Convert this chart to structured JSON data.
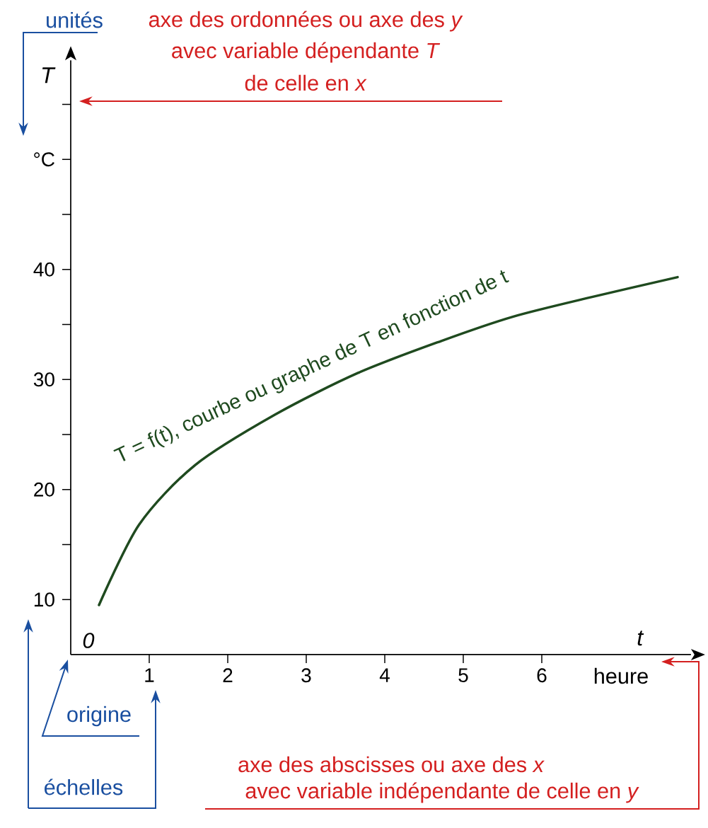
{
  "chart_data": {
    "type": "line",
    "ylabel": "T",
    "xlabel": "t",
    "color": "#1f4a1f",
    "x": [
      0.36,
      0.87,
      1.58,
      2.6,
      3.66,
      4.72,
      5.63,
      6.64,
      7.73
    ],
    "values": [
      9.5,
      16.8,
      22.2,
      26.8,
      30.6,
      33.5,
      35.7,
      37.5,
      39.3
    ],
    "xlim": [
      0,
      7.9
    ],
    "ylim": [
      5,
      59
    ],
    "xticks": [
      1,
      2,
      3,
      4,
      5,
      6
    ],
    "yticks": [
      10,
      {
        "value": 15,
        "label": null
      },
      20,
      {
        "value": 25,
        "label": null
      },
      30,
      {
        "value": 35,
        "label": null
      },
      40,
      {
        "value": 45,
        "label": null
      },
      {
        "value": 50,
        "label": "°C"
      },
      {
        "value": 55,
        "label": null
      }
    ],
    "annotations": [
      "unités",
      "axe des ordonnées ou axe des *y*",
      "avec variable dépendante *T*",
      "de celle en *x*",
      "T = f(t), courbe ou graphe de T en fonction de t",
      "0",
      "heure",
      "origine",
      "échelles",
      "axe des abscisses ou axe des *x*",
      "avec variable indépendante de celle en *y*"
    ]
  }
}
